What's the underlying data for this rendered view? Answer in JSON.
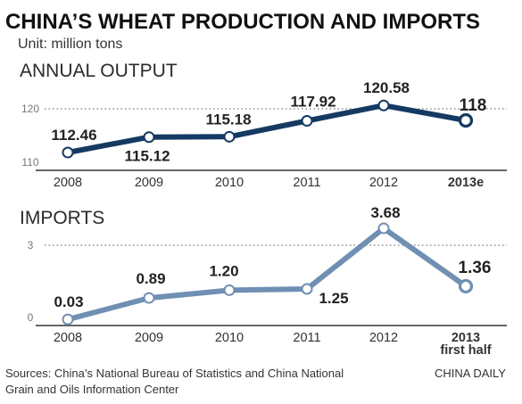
{
  "header": {
    "title": "CHINA’S WHEAT PRODUCTION AND IMPORTS",
    "unit": "Unit: million tons"
  },
  "chart_data": [
    {
      "type": "line",
      "title": "ANNUAL OUTPUT",
      "categories": [
        "2008",
        "2009",
        "2010",
        "2011",
        "2012",
        "2013e"
      ],
      "values": [
        112.46,
        115.12,
        115.18,
        117.92,
        120.58,
        118
      ],
      "data_labels": [
        "112.46",
        "115.12",
        "115.18",
        "117.92",
        "120.58",
        "118"
      ],
      "yticks": [
        "120",
        "110"
      ],
      "ylim": [
        110,
        124
      ],
      "line_color": "#143a63",
      "grid": "dotted reference line at 120"
    },
    {
      "type": "line",
      "title": "IMPORTS",
      "categories": [
        "2008",
        "2009",
        "2010",
        "2011",
        "2012",
        "2013 first half"
      ],
      "category_lines": [
        [
          "2008"
        ],
        [
          "2009"
        ],
        [
          "2010"
        ],
        [
          "2011"
        ],
        [
          "2012"
        ],
        [
          "2013",
          "first half"
        ]
      ],
      "values": [
        0.03,
        0.89,
        1.2,
        1.25,
        3.68,
        1.36
      ],
      "data_labels": [
        "0.03",
        "0.89",
        "1.20",
        "1.25",
        "3.68",
        "1.36"
      ],
      "yticks": [
        "3",
        "0"
      ],
      "ylim": [
        0,
        4
      ],
      "line_color": "#6f8fb3",
      "grid": "dotted reference line at 3"
    }
  ],
  "footer": {
    "source_line1": "Sources: China’s National Bureau of Statistics and China National",
    "source_line2": "Grain and Oils Information Center",
    "credit": "CHINA DAILY"
  }
}
